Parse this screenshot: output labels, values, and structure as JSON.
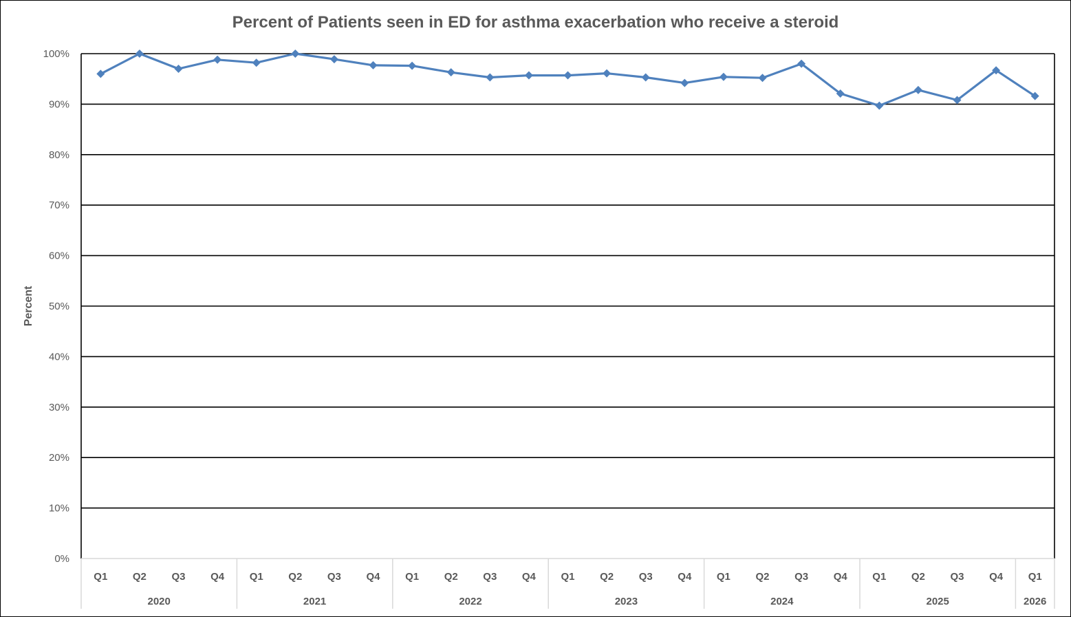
{
  "chart_data": {
    "type": "line",
    "title": "Percent of Patients seen in ED for asthma exacerbation who receive a steroid",
    "ylabel": "Percent",
    "xlabel": "",
    "ylim": [
      0,
      100
    ],
    "y_ticks": [
      "0%",
      "10%",
      "20%",
      "30%",
      "40%",
      "50%",
      "60%",
      "70%",
      "80%",
      "90%",
      "100%"
    ],
    "categories": [
      "Q1",
      "Q2",
      "Q3",
      "Q4",
      "Q1",
      "Q2",
      "Q3",
      "Q4",
      "Q1",
      "Q2",
      "Q3",
      "Q4",
      "Q1",
      "Q2",
      "Q3",
      "Q4",
      "Q1",
      "Q2",
      "Q3",
      "Q4",
      "Q1",
      "Q2",
      "Q3",
      "Q4",
      "Q1"
    ],
    "year_groups": [
      {
        "year": "2020",
        "count": 4
      },
      {
        "year": "2021",
        "count": 4
      },
      {
        "year": "2022",
        "count": 4
      },
      {
        "year": "2023",
        "count": 4
      },
      {
        "year": "2024",
        "count": 4
      },
      {
        "year": "2025",
        "count": 4
      },
      {
        "year": "2026",
        "count": 1
      }
    ],
    "series": [
      {
        "values": [
          96.0,
          100.0,
          97.0,
          98.8,
          98.2,
          100.0,
          98.9,
          97.7,
          97.6,
          96.3,
          95.3,
          95.7,
          95.7,
          96.1,
          95.3,
          94.2,
          95.4,
          95.2,
          98.0,
          92.1,
          89.7,
          92.8,
          90.8,
          96.7,
          91.6
        ],
        "color": "#4f81bd"
      }
    ],
    "grid": true,
    "legend": "none"
  }
}
